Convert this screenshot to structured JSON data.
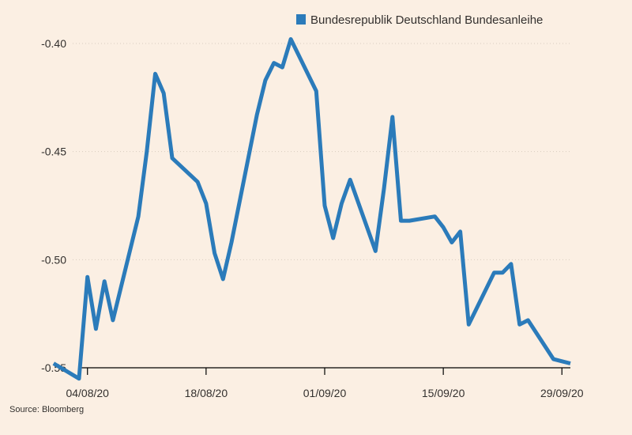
{
  "legend": {
    "label": "Bundesrepublik Deutschland Bundesanleihe",
    "position": "top-right"
  },
  "source": "Source: Bloomberg",
  "chart_data": {
    "type": "line",
    "title": "",
    "xlabel": "",
    "ylabel": "",
    "color": "#2b7bba",
    "ylim": [
      -0.55,
      -0.39
    ],
    "yticks": [
      -0.4,
      -0.45,
      -0.5,
      -0.55
    ],
    "ytick_labels": [
      "-0.40",
      "-0.45",
      "-0.50",
      "-0.55"
    ],
    "xlim": [
      "2020-08-03",
      "2020-09-30"
    ],
    "xticks": [
      "2020-08-04",
      "2020-08-18",
      "2020-09-01",
      "2020-09-15",
      "2020-09-29"
    ],
    "xtick_labels": [
      "04/08/20",
      "18/08/20",
      "01/09/20",
      "15/09/20",
      "29/09/20"
    ],
    "grid": true,
    "series": [
      {
        "name": "Bundesrepublik Deutschland Bundesanleihe",
        "x": [
          "2020-07-31",
          "2020-08-03",
          "2020-08-04",
          "2020-08-05",
          "2020-08-06",
          "2020-08-07",
          "2020-08-10",
          "2020-08-11",
          "2020-08-12",
          "2020-08-13",
          "2020-08-14",
          "2020-08-17",
          "2020-08-18",
          "2020-08-19",
          "2020-08-20",
          "2020-08-21",
          "2020-08-24",
          "2020-08-25",
          "2020-08-26",
          "2020-08-27",
          "2020-08-28",
          "2020-08-31",
          "2020-09-01",
          "2020-09-02",
          "2020-09-03",
          "2020-09-04",
          "2020-09-07",
          "2020-09-08",
          "2020-09-09",
          "2020-09-10",
          "2020-09-11",
          "2020-09-14",
          "2020-09-15",
          "2020-09-16",
          "2020-09-17",
          "2020-09-18",
          "2020-09-21",
          "2020-09-22",
          "2020-09-23",
          "2020-09-24",
          "2020-09-25",
          "2020-09-28",
          "2020-09-29",
          "2020-09-30"
        ],
        "values": [
          -0.548,
          -0.555,
          -0.508,
          -0.532,
          -0.51,
          -0.528,
          -0.48,
          -0.45,
          -0.414,
          -0.423,
          -0.453,
          -0.464,
          -0.474,
          -0.497,
          -0.509,
          -0.492,
          -0.433,
          -0.417,
          -0.409,
          -0.411,
          -0.398,
          -0.422,
          -0.475,
          -0.49,
          -0.474,
          -0.463,
          -0.496,
          -0.467,
          -0.434,
          -0.482,
          -0.482,
          -0.48,
          -0.485,
          -0.492,
          -0.487,
          -0.53,
          -0.506,
          -0.506,
          -0.502,
          -0.53,
          -0.528,
          -0.546,
          -0.547,
          -0.548
        ]
      }
    ]
  }
}
